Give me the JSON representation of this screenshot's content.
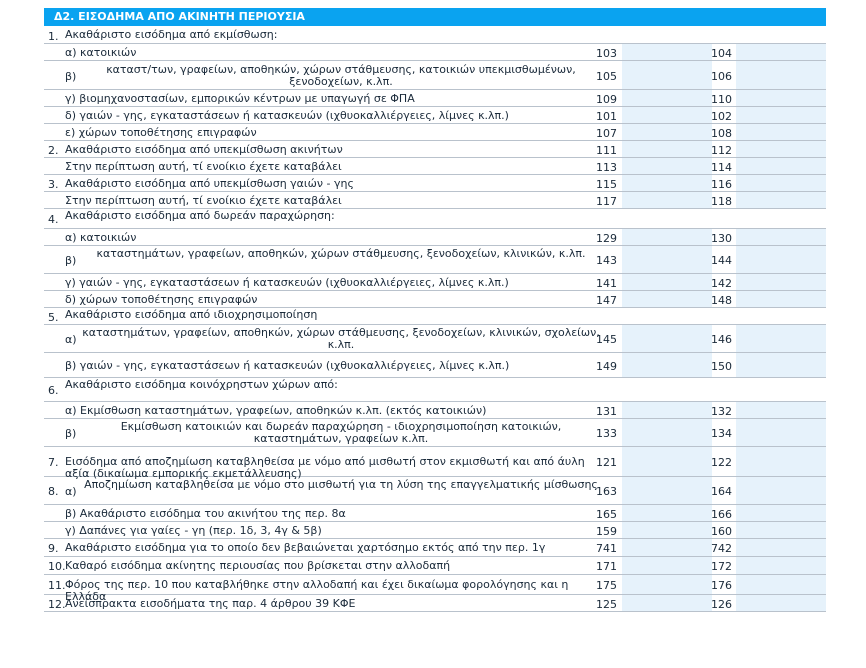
{
  "section_title": "Δ2. ΕΙΣΟΔΗΜΑ ΑΠΟ ΑΚΙΝΗΤΗ ΠΕΡΙΟΥΣΙΑ",
  "rows": [
    {
      "type": "section",
      "num": "1.",
      "label": "Ακαθάριστο εισόδημα από εκμίσθωση:"
    },
    {
      "type": "item",
      "label": "α) κατοικιών",
      "c1": "103",
      "c2": "104"
    },
    {
      "type": "item",
      "prefix": "β)",
      "label": "καταστ/των, γραφείων, αποθηκών, χώρων στάθμευσης, κατοικιών υπεκμισθωμένων, ξενοδοχείων, κ.λπ.",
      "c1": "105",
      "c2": "106"
    },
    {
      "type": "item",
      "label": "γ) βιομηχανοστασίων, εμπορικών κέντρων με υπαγωγή σε ΦΠΑ",
      "c1": "109",
      "c2": "110"
    },
    {
      "type": "item",
      "label": "δ) γαιών - γης, εγκαταστάσεων ή κατασκευών (ιχθυοκαλλιέργειες, λίμνες κ.λπ.)",
      "c1": "101",
      "c2": "102"
    },
    {
      "type": "item",
      "label": "ε) χώρων τοποθέτησης επιγραφών",
      "c1": "107",
      "c2": "108"
    },
    {
      "type": "item",
      "num": "2.",
      "label": "Ακαθάριστο εισόδημα από υπεκμίσθωση ακινήτων",
      "c1": "111",
      "c2": "112"
    },
    {
      "type": "item",
      "label": "Στην περίπτωση αυτή, τί ενοίκιο έχετε καταβάλει",
      "c1": "113",
      "c2": "114"
    },
    {
      "type": "item",
      "num": "3.",
      "label": "Ακαθάριστο εισόδημα από υπεκμίσθωση γαιών - γης",
      "c1": "115",
      "c2": "116"
    },
    {
      "type": "item",
      "label": "Στην περίπτωση αυτή, τί ενοίκιο έχετε καταβάλει",
      "c1": "117",
      "c2": "118"
    },
    {
      "type": "section",
      "num": "4.",
      "label": "Ακαθάριστο εισόδημα από δωρεάν παραχώρηση:"
    },
    {
      "type": "item",
      "label": "α) κατοικιών",
      "c1": "129",
      "c2": "130"
    },
    {
      "type": "item",
      "prefix": "β)",
      "label": "καταστημάτων, γραφείων, αποθηκών, χώρων στάθμευσης, ξενοδοχείων, κλινικών, κ.λπ.",
      "c1": "143",
      "c2": "144"
    },
    {
      "type": "item",
      "label": "γ) γαιών - γης, εγκαταστάσεων ή κατασκευών (ιχθυοκαλλιέργειες, λίμνες κ.λπ.)",
      "c1": "141",
      "c2": "142"
    },
    {
      "type": "item",
      "label": "δ) χώρων τοποθέτησης επιγραφών",
      "c1": "147",
      "c2": "148"
    },
    {
      "type": "section",
      "num": "5.",
      "label": "Ακαθάριστο εισόδημα από ιδιοχρησιμοποίηση"
    },
    {
      "type": "item",
      "prefix": "α)",
      "label": "καταστημάτων, γραφείων, αποθηκών, χώρων στάθμευσης, ξενοδοχείων, κλινικών, σχολείων, κ.λπ.",
      "c1": "145",
      "c2": "146"
    },
    {
      "type": "item",
      "label": "β) γαιών - γης, εγκαταστάσεων ή κατασκευών (ιχθυοκαλλιέργειες, λίμνες κ.λπ.)",
      "c1": "149",
      "c2": "150"
    },
    {
      "type": "section",
      "num": "6.",
      "label": "Ακαθάριστο εισόδημα κοινόχρηστων χώρων από:"
    },
    {
      "type": "item",
      "label": "α) Εκμίσθωση καταστημάτων, γραφείων, αποθηκών κ.λπ. (εκτός κατοικιών)",
      "c1": "131",
      "c2": "132"
    },
    {
      "type": "item",
      "prefix": "β)",
      "label": "Εκμίσθωση κατοικιών και δωρεάν παραχώρηση - ιδιοχρησιμοποίηση κατοικιών, καταστημάτων, γραφείων κ.λπ.",
      "c1": "133",
      "c2": "134"
    },
    {
      "type": "item",
      "num": "7.",
      "label": "Εισόδημα από αποζημίωση καταβληθείσα με νόμο από μισθωτή στον εκμισθωτή και από άυλη αξία (δικαίωμα εμπορικής εκμετάλλευσης)",
      "c1": "121",
      "c2": "122"
    },
    {
      "type": "item",
      "num": "8.",
      "prefix": "α)",
      "label": "Αποζημίωση καταβληθείσα με νόμο στο μισθωτή για τη λύση της επαγγελματικής μίσθωσης",
      "c1": "163",
      "c2": "164"
    },
    {
      "type": "item",
      "label": "β) Ακαθάριστο εισόδημα του ακινήτου της περ. 8α",
      "c1": "165",
      "c2": "166"
    },
    {
      "type": "item",
      "label": "γ) Δαπάνες για γαίες - γη (περ. 1δ, 3, 4γ & 5β)",
      "c1": "159",
      "c2": "160"
    },
    {
      "type": "item",
      "num": "9.",
      "label": "Ακαθάριστο εισόδημα για το οποίο δεν βεβαιώνεται χαρτόσημο εκτός από την περ. 1γ",
      "c1": "741",
      "c2": "742"
    },
    {
      "type": "item",
      "num": "10.",
      "label": "Καθαρό εισόδημα ακίνητης περιουσίας που βρίσκεται στην αλλοδαπή",
      "c1": "171",
      "c2": "172"
    },
    {
      "type": "item",
      "num": "11.",
      "label": "Φόρος της περ. 10 που καταβλήθηκε στην αλλοδαπή και έχει δικαίωμα φορολόγησης και η Ελλάδα",
      "c1": "175",
      "c2": "176"
    },
    {
      "type": "item",
      "num": "12.",
      "label": "Ανείσπρακτα εισοδήματα της παρ. 4 άρθρου 39 ΚΦΕ",
      "c1": "125",
      "c2": "126"
    }
  ]
}
